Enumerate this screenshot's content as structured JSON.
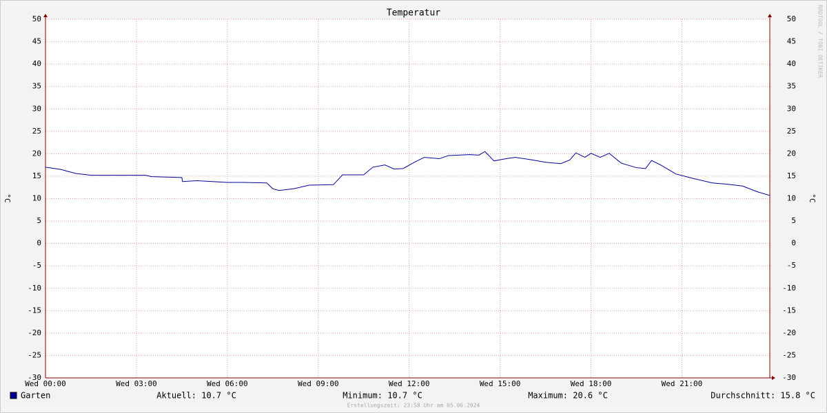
{
  "chart_data": {
    "type": "line",
    "title": "Temperatur",
    "y_label": "°C",
    "x": [
      0,
      0.5,
      1.0,
      1.5,
      2.0,
      3.0,
      3.3,
      3.5,
      4.5,
      4.52,
      5.0,
      6.0,
      6.5,
      7.3,
      7.5,
      7.7,
      8.2,
      8.7,
      9.5,
      9.8,
      10.5,
      10.8,
      11.2,
      11.5,
      11.8,
      12.2,
      12.5,
      13.0,
      13.3,
      14.0,
      14.3,
      14.5,
      14.8,
      15.2,
      15.5,
      16.0,
      16.5,
      17.0,
      17.3,
      17.5,
      17.8,
      18.0,
      18.3,
      18.6,
      19.0,
      19.5,
      19.8,
      20.0,
      20.3,
      20.8,
      21.3,
      22.0,
      22.5,
      23.0,
      23.5,
      23.9
    ],
    "series": [
      {
        "name": "Garten",
        "color": "#000099",
        "values": [
          17.0,
          16.5,
          15.6,
          15.2,
          15.2,
          15.2,
          15.2,
          14.9,
          14.7,
          13.8,
          14.0,
          13.6,
          13.6,
          13.5,
          12.2,
          11.8,
          12.2,
          13.0,
          13.1,
          15.3,
          15.3,
          17.0,
          17.5,
          16.6,
          16.7,
          18.2,
          19.2,
          18.9,
          19.6,
          19.8,
          19.7,
          20.5,
          18.4,
          18.9,
          19.2,
          18.7,
          18.1,
          17.8,
          18.6,
          20.2,
          19.2,
          20.1,
          19.2,
          20.1,
          17.9,
          16.9,
          16.7,
          18.5,
          17.5,
          15.5,
          14.6,
          13.5,
          13.2,
          12.8,
          11.5,
          10.7
        ]
      }
    ],
    "xlim": [
      0,
      23.9
    ],
    "xticks": [
      {
        "value": 0,
        "label": "Wed 00:00"
      },
      {
        "value": 3,
        "label": "Wed 03:00"
      },
      {
        "value": 6,
        "label": "Wed 06:00"
      },
      {
        "value": 9,
        "label": "Wed 09:00"
      },
      {
        "value": 12,
        "label": "Wed 12:00"
      },
      {
        "value": 15,
        "label": "Wed 15:00"
      },
      {
        "value": 18,
        "label": "Wed 18:00"
      },
      {
        "value": 21,
        "label": "Wed 21:00"
      }
    ],
    "ylim": [
      -30,
      50
    ],
    "yticks": [
      -30,
      -25,
      -20,
      -15,
      -10,
      -5,
      0,
      5,
      10,
      15,
      20,
      25,
      30,
      35,
      40,
      45,
      50
    ],
    "grid": true,
    "stats": [
      "Aktuell: 10.7 °C",
      "Minimum: 10.7 °C",
      "Maximum: 20.6 °C",
      "Durchschnitt: 15.8 °C"
    ],
    "footer": "Erstellungszeit: 23:58 Uhr am 05.06.2024",
    "watermark": "RRDTOOL / TOBI OETIKER"
  }
}
